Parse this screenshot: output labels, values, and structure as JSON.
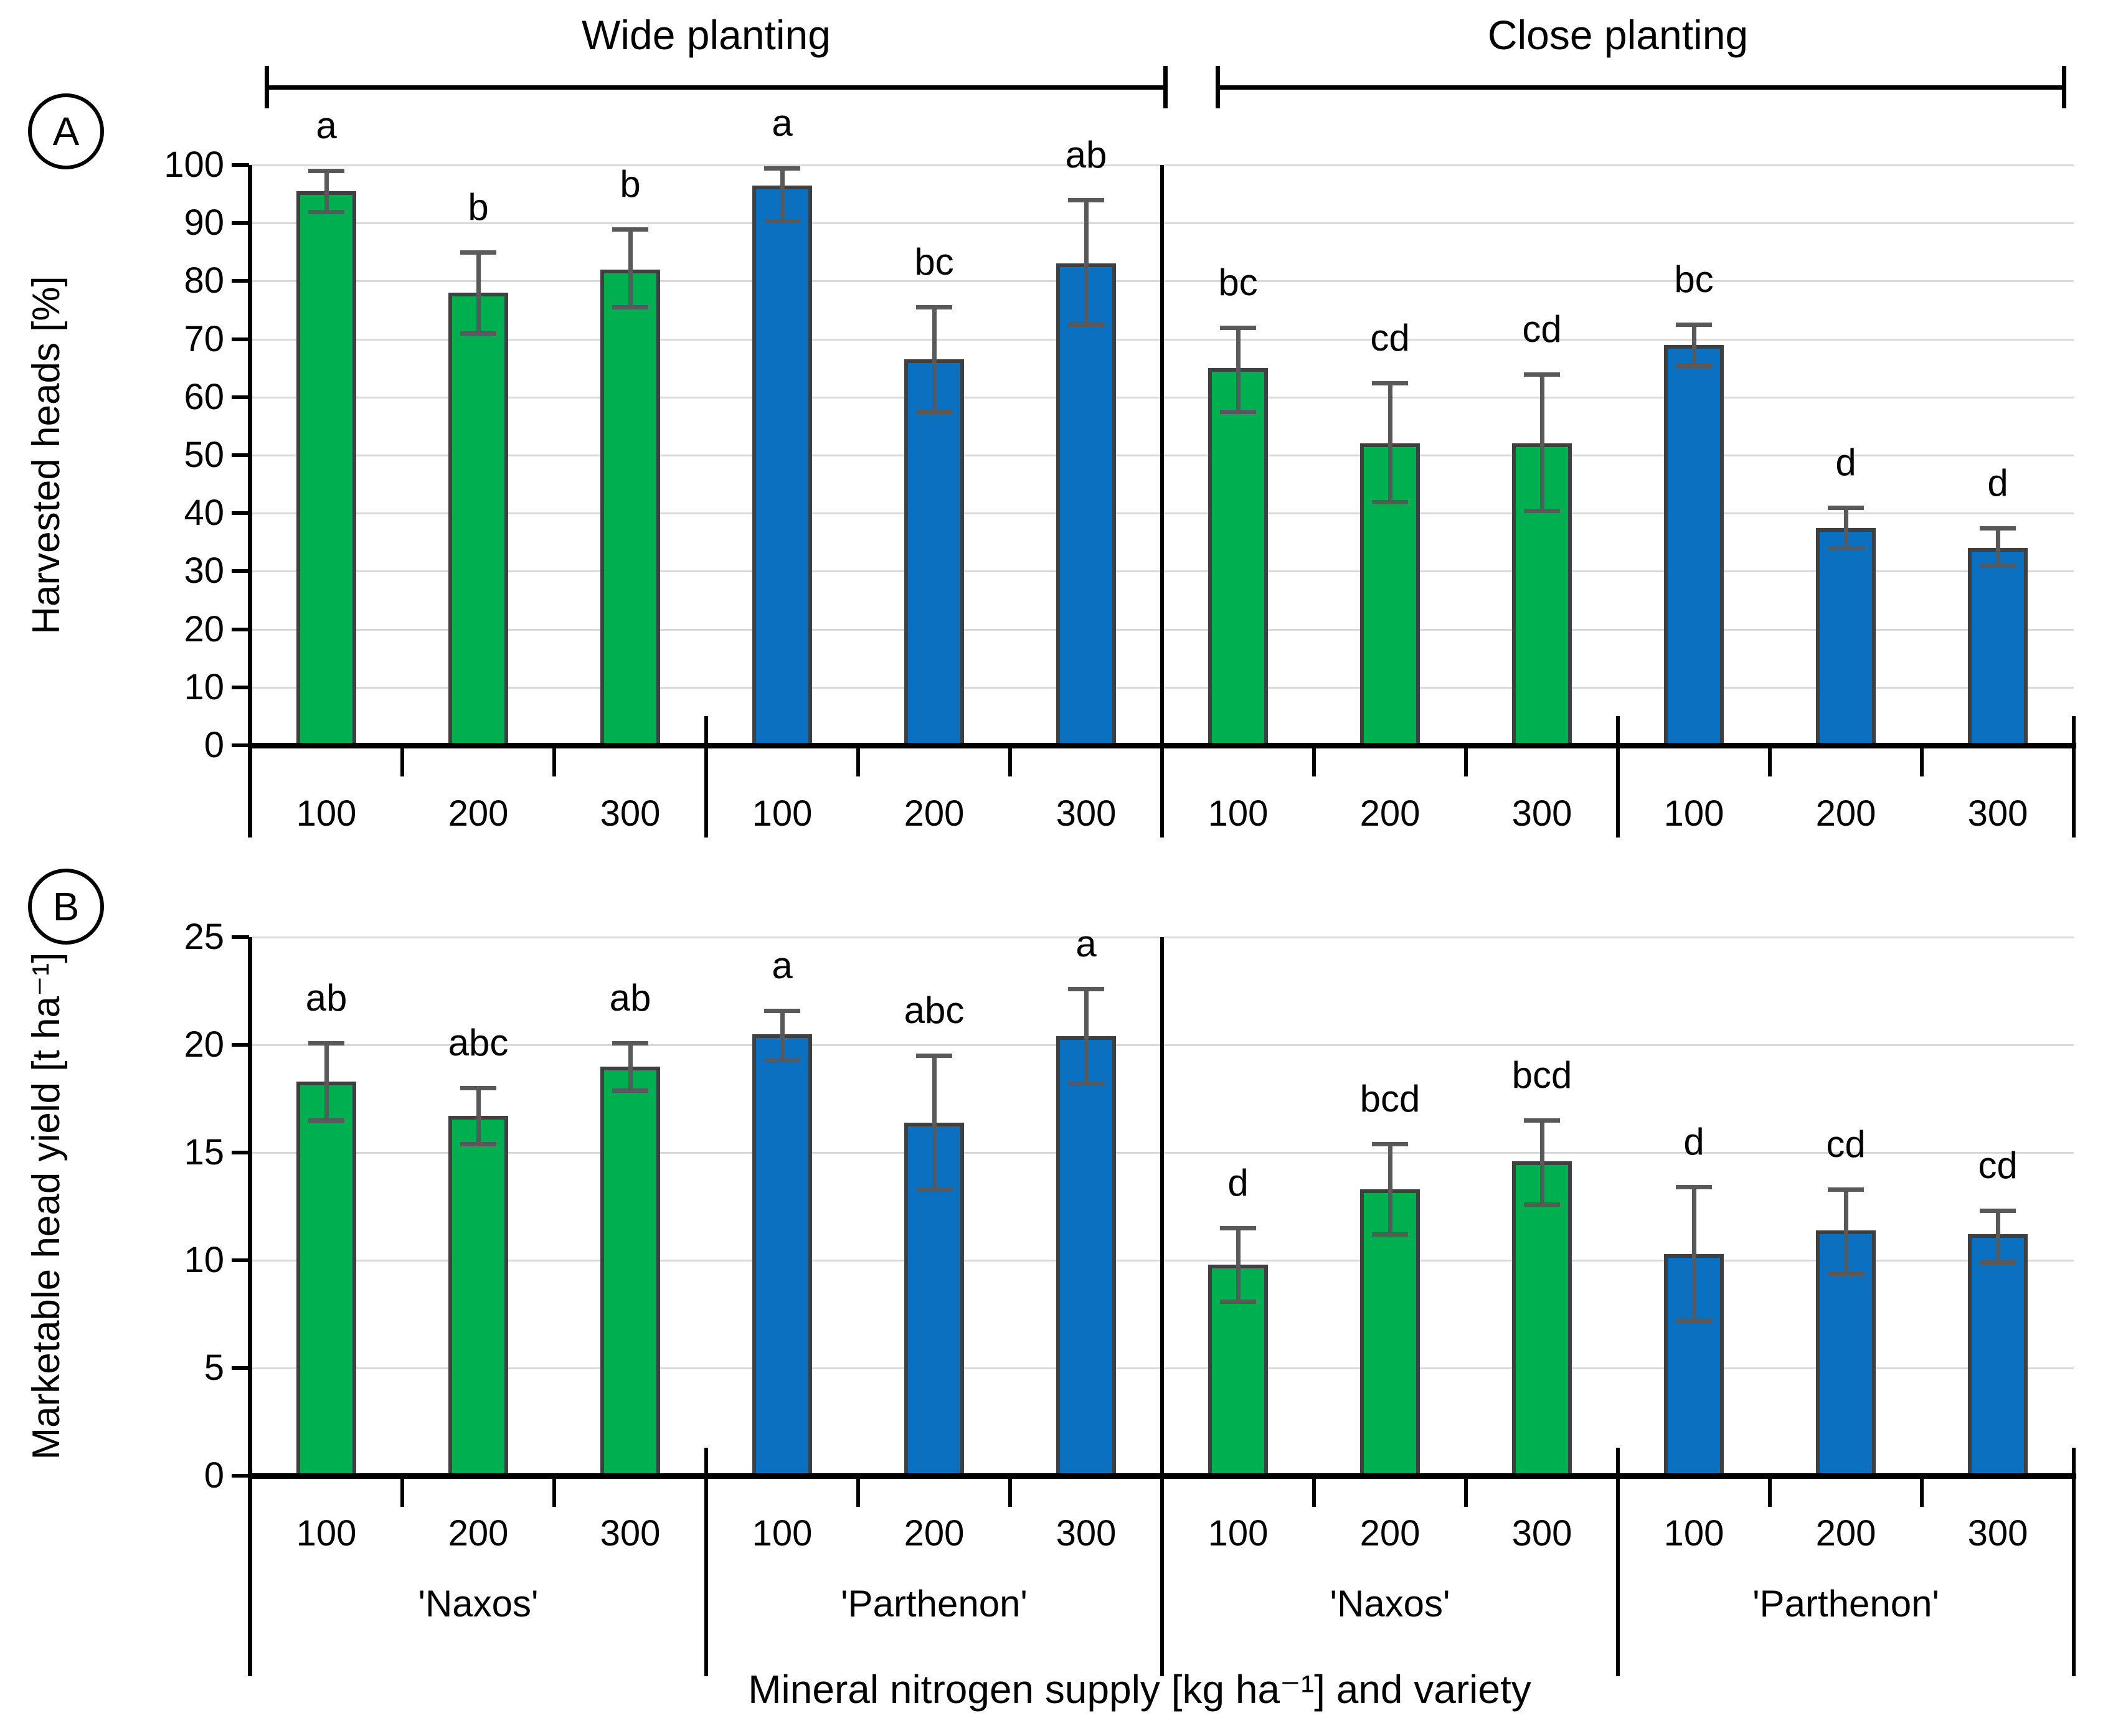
{
  "panel_labels": [
    "A",
    "B"
  ],
  "group_headers": {
    "wide": "Wide planting",
    "close": "Close planting"
  },
  "x_axis_title": "Mineral nitrogen supply [kg ha⁻¹] and variety",
  "colors": {
    "naxos_green": "#00B050",
    "parthenon_blue": "#0B70C0",
    "bar_outline": "#404040",
    "error_bar": "#595959",
    "gridline": "#D9D9D9",
    "axis": "#000000"
  },
  "chart_data": [
    {
      "type": "bar",
      "panel": "A",
      "ylabel": "Harvested heads [%]",
      "ylim": [
        0,
        100
      ],
      "ytick_step": 10,
      "grid": true,
      "x_tick_labels": [
        "100",
        "200",
        "300"
      ],
      "series": [
        {
          "planting": "Wide planting",
          "variety": "'Naxos'",
          "color": "#00B050",
          "points": [
            {
              "x": "100",
              "y": 95.5,
              "err_low": 92,
              "err_high": 99,
              "sig": "a"
            },
            {
              "x": "200",
              "y": 78,
              "err_low": 71,
              "err_high": 85,
              "sig": "b"
            },
            {
              "x": "300",
              "y": 82,
              "err_low": 75.5,
              "err_high": 89,
              "sig": "b"
            }
          ]
        },
        {
          "planting": "Wide planting",
          "variety": "'Parthenon'",
          "color": "#0B70C0",
          "points": [
            {
              "x": "100",
              "y": 96.5,
              "err_low": 90.5,
              "err_high": 99.5,
              "sig": "a"
            },
            {
              "x": "200",
              "y": 66.5,
              "err_low": 57.5,
              "err_high": 75.5,
              "sig": "bc"
            },
            {
              "x": "300",
              "y": 83,
              "err_low": 72.5,
              "err_high": 94,
              "sig": "ab"
            }
          ]
        },
        {
          "planting": "Close planting",
          "variety": "'Naxos'",
          "color": "#00B050",
          "points": [
            {
              "x": "100",
              "y": 65,
              "err_low": 57.5,
              "err_high": 72,
              "sig": "bc"
            },
            {
              "x": "200",
              "y": 52,
              "err_low": 42,
              "err_high": 62.5,
              "sig": "cd"
            },
            {
              "x": "300",
              "y": 52,
              "err_low": 40.5,
              "err_high": 64,
              "sig": "cd"
            }
          ]
        },
        {
          "planting": "Close planting",
          "variety": "'Parthenon'",
          "color": "#0B70C0",
          "points": [
            {
              "x": "100",
              "y": 69,
              "err_low": 65.5,
              "err_high": 72.5,
              "sig": "bc"
            },
            {
              "x": "200",
              "y": 37.5,
              "err_low": 34,
              "err_high": 41,
              "sig": "d"
            },
            {
              "x": "300",
              "y": 34,
              "err_low": 31,
              "err_high": 37.5,
              "sig": "d"
            }
          ]
        }
      ]
    },
    {
      "type": "bar",
      "panel": "B",
      "ylabel": "Marketable head yield [t ha⁻¹]",
      "ylim": [
        0,
        25
      ],
      "ytick_step": 5,
      "grid": true,
      "x_tick_labels": [
        "100",
        "200",
        "300"
      ],
      "variety_row_labels": [
        "'Naxos'",
        "'Parthenon'",
        "'Naxos'",
        "'Parthenon'"
      ],
      "series": [
        {
          "planting": "Wide planting",
          "variety": "'Naxos'",
          "color": "#00B050",
          "points": [
            {
              "x": "100",
              "y": 18.3,
              "err_low": 16.5,
              "err_high": 20.1,
              "sig": "ab"
            },
            {
              "x": "200",
              "y": 16.7,
              "err_low": 15.4,
              "err_high": 18.0,
              "sig": "abc"
            },
            {
              "x": "300",
              "y": 19.0,
              "err_low": 17.9,
              "err_high": 20.1,
              "sig": "ab"
            }
          ]
        },
        {
          "planting": "Wide planting",
          "variety": "'Parthenon'",
          "color": "#0B70C0",
          "points": [
            {
              "x": "100",
              "y": 20.5,
              "err_low": 19.3,
              "err_high": 21.6,
              "sig": "a"
            },
            {
              "x": "200",
              "y": 16.4,
              "err_low": 13.3,
              "err_high": 19.5,
              "sig": "abc"
            },
            {
              "x": "300",
              "y": 20.4,
              "err_low": 18.2,
              "err_high": 22.6,
              "sig": "a"
            }
          ]
        },
        {
          "planting": "Close planting",
          "variety": "'Naxos'",
          "color": "#00B050",
          "points": [
            {
              "x": "100",
              "y": 9.8,
              "err_low": 8.1,
              "err_high": 11.5,
              "sig": "d"
            },
            {
              "x": "200",
              "y": 13.3,
              "err_low": 11.2,
              "err_high": 15.4,
              "sig": "bcd"
            },
            {
              "x": "300",
              "y": 14.6,
              "err_low": 12.6,
              "err_high": 16.5,
              "sig": "bcd"
            }
          ]
        },
        {
          "planting": "Close planting",
          "variety": "'Parthenon'",
          "color": "#0B70C0",
          "points": [
            {
              "x": "100",
              "y": 10.3,
              "err_low": 7.2,
              "err_high": 13.4,
              "sig": "d"
            },
            {
              "x": "200",
              "y": 11.4,
              "err_low": 9.4,
              "err_high": 13.3,
              "sig": "cd"
            },
            {
              "x": "300",
              "y": 11.2,
              "err_low": 9.9,
              "err_high": 12.3,
              "sig": "cd"
            }
          ]
        }
      ]
    }
  ]
}
